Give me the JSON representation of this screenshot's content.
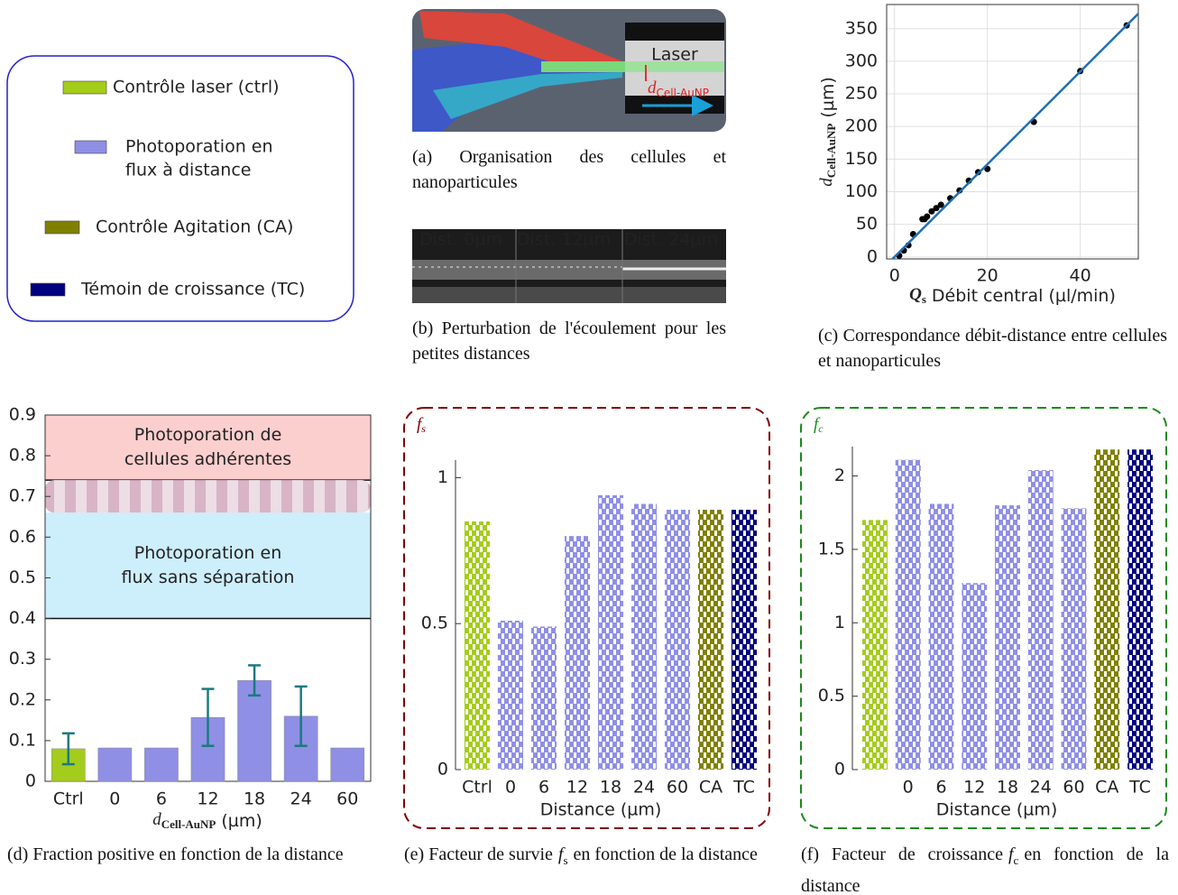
{
  "legend": {
    "items": [
      {
        "label": [
          "Contrôle laser (ctrl)"
        ],
        "color": "#a6cc1a"
      },
      {
        "label": [
          "Photoporation en",
          "flux à distance"
        ],
        "color": "#8f8fe6"
      },
      {
        "label": [
          "Contrôle Agitation (CA)"
        ],
        "color": "#808000"
      },
      {
        "label": [
          "Témoin de croissance (TC)"
        ],
        "color": "#000080"
      }
    ]
  },
  "panel_a": {
    "labels": {
      "laser": "Laser",
      "symbol": "d",
      "subscript": "Cell-AuNP"
    },
    "caption": "(a) Organisation des cellules et nanoparticules"
  },
  "panel_b": {
    "labels": [
      "Dist. 0µm",
      "Dist. 12µm",
      "Dist. 24µm"
    ],
    "caption": "(b) Perturbation de l'écoulement pour les petites distances"
  },
  "chart_data": [
    {
      "type": "scatter",
      "caption": "(c) Correspondance débit-distance entre cellules et nanoparticules",
      "x_label": {
        "symbol": "Q",
        "subscript": "s",
        "text": "Débit central (µl/min)"
      },
      "y_label": {
        "symbol": "d",
        "subscript": "Cell-AuNP",
        "text": "(µm)"
      },
      "series": [
        {
          "style": "points",
          "color": "#000000",
          "x": [
            1,
            2,
            3,
            4,
            6,
            6.5,
            7,
            8,
            9,
            10,
            12,
            14,
            16,
            18,
            20,
            30,
            40,
            50
          ],
          "values": [
            2,
            10,
            18,
            35,
            58,
            58,
            62,
            70,
            75,
            80,
            90,
            102,
            117,
            130,
            135,
            207,
            285,
            355
          ]
        },
        {
          "style": "line",
          "color": "#1f6fb4",
          "x": [
            -1,
            52.5
          ],
          "values": [
            -7,
            373
          ]
        }
      ],
      "xlim": [
        -1.7,
        52.5
      ],
      "ylim": [
        -3,
        387
      ],
      "xticks": [
        0,
        20,
        40
      ],
      "yticks": [
        0,
        50,
        100,
        150,
        200,
        250,
        300,
        350
      ],
      "grid": true
    },
    {
      "type": "bar",
      "caption": "(d) Fraction positive en fonction de la distance",
      "categories": [
        "Ctrl",
        "0",
        "6",
        "12",
        "18",
        "24",
        "60"
      ],
      "values": [
        0.08,
        0.082,
        0.082,
        0.157,
        0.248,
        0.16,
        0.082
      ],
      "errors": [
        0.038,
        null,
        null,
        0.07,
        0.037,
        0.073,
        null
      ],
      "colors": [
        "#a4cc1c",
        "#8f8fe6",
        "#8f8fe6",
        "#8f8fe6",
        "#8f8fe6",
        "#8f8fe6",
        "#8f8fe6"
      ],
      "error_color": "#1a7a80",
      "regions": [
        {
          "from": 0.74,
          "to": 0.9,
          "label": [
            "Photoporation de",
            "cellules adhérentes"
          ],
          "color": "#fccfcf"
        },
        {
          "from": 0.66,
          "to": 0.74,
          "color": "#d8b4c6"
        },
        {
          "from": 0.4,
          "to": 0.66,
          "label": [
            "Photoporation en",
            "flux sans séparation"
          ],
          "color": "#cdeefb"
        }
      ],
      "x_label": {
        "symbol": "d",
        "subscript": "Cell-AuNP",
        "text": "(µm)"
      },
      "ylim": [
        0,
        0.9
      ],
      "yticks": [
        0,
        0.1,
        0.2,
        0.3,
        0.4,
        0.5,
        0.6,
        0.7,
        0.8,
        0.9
      ],
      "grid": false
    },
    {
      "type": "bar",
      "caption": {
        "before": "(e) Facteur de survie",
        "symbol": "f",
        "subscript": "s",
        "after": "en fonction de la distance"
      },
      "panel_label": {
        "symbol": "f",
        "subscript": "s"
      },
      "frame_color": "#800000",
      "pattern": true,
      "categories": [
        "Ctrl",
        "0",
        "6",
        "12",
        "18",
        "24",
        "60",
        "CA",
        "TC"
      ],
      "values": [
        0.85,
        0.51,
        0.49,
        0.8,
        0.94,
        0.91,
        0.89,
        0.89,
        0.89
      ],
      "colors": [
        "#a4cc1c",
        "#8f8fe6",
        "#8f8fe6",
        "#8f8fe6",
        "#8f8fe6",
        "#8f8fe6",
        "#8f8fe6",
        "#808000",
        "#000080"
      ],
      "x_label": "Distance (µm)",
      "ylim": [
        0,
        1.06
      ],
      "yticks": [
        0,
        0.5,
        1
      ],
      "grid": false
    },
    {
      "type": "bar",
      "caption": {
        "before": "(f) Facteur de croissance",
        "symbol": "f",
        "subscript": "c",
        "after": "en fonction de la distance"
      },
      "panel_label": {
        "symbol": "f",
        "subscript": "c"
      },
      "frame_color": "#1a8a1a",
      "pattern": true,
      "categories": [
        null,
        "0",
        "6",
        "12",
        "18",
        "24",
        "60",
        "CA",
        "TC"
      ],
      "values": [
        1.7,
        2.11,
        1.81,
        1.27,
        1.8,
        2.04,
        1.78,
        2.18,
        2.18
      ],
      "colors": [
        "#a4cc1c",
        "#8f8fe6",
        "#8f8fe6",
        "#8f8fe6",
        "#8f8fe6",
        "#8f8fe6",
        "#8f8fe6",
        "#808000",
        "#000080"
      ],
      "x_label": "Distance (µm)",
      "ylim": [
        0,
        2.2
      ],
      "yticks": [
        0,
        0.5,
        1,
        1.5,
        2
      ],
      "grid": false
    }
  ]
}
